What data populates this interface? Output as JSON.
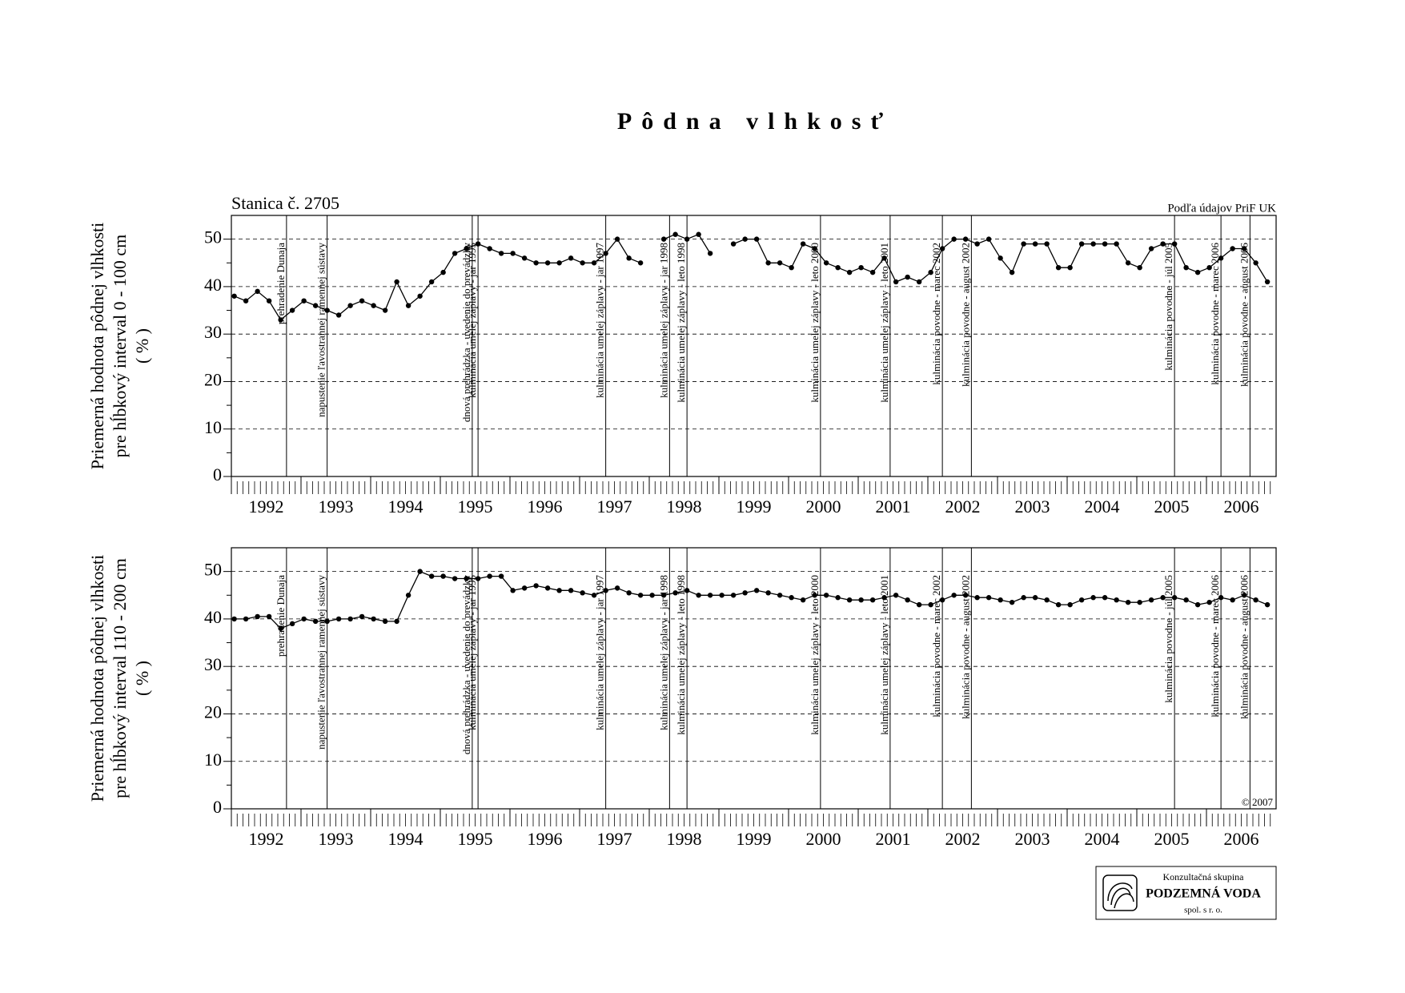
{
  "title": "Pôdna vlhkosť",
  "station": "Stanica č. 2705",
  "source": "Podľa údajov PriF UK",
  "copyright": "© 2007",
  "logo": {
    "line1": "Konzultačná skupina",
    "line2": "PODZEMNÁ VODA",
    "line3": "spol. s r. o."
  },
  "events": [
    {
      "date": "1992-10",
      "label": "prehradenie Dunaja"
    },
    {
      "date": "1993-05",
      "label": "napustenie ľavostrannej ramennej sústavy"
    },
    {
      "date": "1995-06",
      "label": "dnová prehrádzka - uvedenie do prevádzky"
    },
    {
      "date": "1995-07",
      "label": "kulminácia umelej záplavy - jar 1995"
    },
    {
      "date": "1997-05",
      "label": "kulminácia umelej záplavy - jar 1997"
    },
    {
      "date": "1998-04",
      "label": "kulminácia umelej záplavy - jar 1998"
    },
    {
      "date": "1998-07",
      "label": "kulminácia umelej záplavy - leto 1998"
    },
    {
      "date": "2000-06",
      "label": "kulminácia umelej záplavy - leto 2000"
    },
    {
      "date": "2001-06",
      "label": "kulminácia umelej záplavy - leto 2001"
    },
    {
      "date": "2002-03",
      "label": "kulminácia povodne - marec 2002"
    },
    {
      "date": "2002-08",
      "label": "kulminácia povodne - august 2002"
    },
    {
      "date": "2005-07",
      "label": "kulminácia povodne - júl 2005"
    },
    {
      "date": "2006-03",
      "label": "kulminácia povodne - marec 2006"
    },
    {
      "date": "2006-08",
      "label": "kulminácia povodne - august 2006"
    }
  ],
  "chart_data": [
    {
      "type": "line",
      "y_label": [
        "Priemerná hodnota pôdnej vlhkosti",
        "pre hĺbkový interval 0 - 100 cm",
        "( % )"
      ],
      "ylim": [
        0,
        55
      ],
      "yticks": [
        0,
        10,
        20,
        30,
        40,
        50
      ],
      "grid": true,
      "xlim": [
        "1992-01",
        "2006-12"
      ],
      "xticks": [
        1992,
        1993,
        1994,
        1995,
        1996,
        1997,
        1998,
        1999,
        2000,
        2001,
        2002,
        2003,
        2004,
        2005,
        2006
      ],
      "x": [
        "1992-01",
        "1992-03",
        "1992-05",
        "1992-07",
        "1992-09",
        "1992-11",
        "1993-01",
        "1993-03",
        "1993-05",
        "1993-07",
        "1993-09",
        "1993-11",
        "1994-01",
        "1994-03",
        "1994-05",
        "1994-07",
        "1994-09",
        "1994-11",
        "1995-01",
        "1995-03",
        "1995-05",
        "1995-07",
        "1995-09",
        "1995-11",
        "1996-01",
        "1996-03",
        "1996-05",
        "1996-07",
        "1996-09",
        "1996-11",
        "1997-01",
        "1997-03",
        "1997-05",
        "1997-07",
        "1997-09",
        "1997-11",
        "1998-01",
        "1998-03",
        "1998-05",
        "1998-07",
        "1998-09",
        "1998-11",
        "1999-01",
        "1999-03",
        "1999-05",
        "1999-07",
        "1999-09",
        "1999-11",
        "2000-01",
        "2000-03",
        "2000-05",
        "2000-07",
        "2000-09",
        "2000-11",
        "2001-01",
        "2001-03",
        "2001-05",
        "2001-07",
        "2001-09",
        "2001-11",
        "2002-01",
        "2002-03",
        "2002-05",
        "2002-07",
        "2002-09",
        "2002-11",
        "2003-01",
        "2003-03",
        "2003-05",
        "2003-07",
        "2003-09",
        "2003-11",
        "2004-01",
        "2004-03",
        "2004-05",
        "2004-07",
        "2004-09",
        "2004-11",
        "2005-01",
        "2005-03",
        "2005-05",
        "2005-07",
        "2005-09",
        "2005-11",
        "2006-01",
        "2006-03",
        "2006-05",
        "2006-07",
        "2006-09",
        "2006-11"
      ],
      "series": [
        {
          "name": "0 - 100 cm",
          "color": "#000000",
          "values": [
            38,
            37,
            39,
            37,
            33,
            35,
            37,
            36,
            35,
            34,
            36,
            37,
            36,
            35,
            41,
            36,
            38,
            41,
            43,
            47,
            48,
            49,
            48,
            47,
            47,
            46,
            45,
            45,
            45,
            46,
            45,
            45,
            47,
            50,
            46,
            45,
            null,
            50,
            51,
            50,
            51,
            47,
            null,
            49,
            50,
            50,
            45,
            45,
            44,
            49,
            48,
            45,
            44,
            43,
            44,
            43,
            46,
            41,
            42,
            41,
            43,
            48,
            50,
            50,
            49,
            50,
            46,
            43,
            49,
            49,
            49,
            44,
            44,
            49,
            49,
            49,
            49,
            45,
            44,
            48,
            49,
            49,
            44,
            43,
            44,
            46,
            48,
            48,
            45,
            41
          ]
        }
      ]
    },
    {
      "type": "line",
      "y_label": [
        "Priemerná hodnota pôdnej vlhkosti",
        "pre hĺbkový interval 110 - 200 cm",
        "( % )"
      ],
      "ylim": [
        0,
        55
      ],
      "yticks": [
        0,
        10,
        20,
        30,
        40,
        50
      ],
      "grid": true,
      "xlim": [
        "1992-01",
        "2006-12"
      ],
      "xticks": [
        1992,
        1993,
        1994,
        1995,
        1996,
        1997,
        1998,
        1999,
        2000,
        2001,
        2002,
        2003,
        2004,
        2005,
        2006
      ],
      "x": [
        "1992-01",
        "1992-03",
        "1992-05",
        "1992-07",
        "1992-09",
        "1992-11",
        "1993-01",
        "1993-03",
        "1993-05",
        "1993-07",
        "1993-09",
        "1993-11",
        "1994-01",
        "1994-03",
        "1994-05",
        "1994-07",
        "1994-09",
        "1994-11",
        "1995-01",
        "1995-03",
        "1995-05",
        "1995-07",
        "1995-09",
        "1995-11",
        "1996-01",
        "1996-03",
        "1996-05",
        "1996-07",
        "1996-09",
        "1996-11",
        "1997-01",
        "1997-03",
        "1997-05",
        "1997-07",
        "1997-09",
        "1997-11",
        "1998-01",
        "1998-03",
        "1998-05",
        "1998-07",
        "1998-09",
        "1998-11",
        "1999-01",
        "1999-03",
        "1999-05",
        "1999-07",
        "1999-09",
        "1999-11",
        "2000-01",
        "2000-03",
        "2000-05",
        "2000-07",
        "2000-09",
        "2000-11",
        "2001-01",
        "2001-03",
        "2001-05",
        "2001-07",
        "2001-09",
        "2001-11",
        "2002-01",
        "2002-03",
        "2002-05",
        "2002-07",
        "2002-09",
        "2002-11",
        "2003-01",
        "2003-03",
        "2003-05",
        "2003-07",
        "2003-09",
        "2003-11",
        "2004-01",
        "2004-03",
        "2004-05",
        "2004-07",
        "2004-09",
        "2004-11",
        "2005-01",
        "2005-03",
        "2005-05",
        "2005-07",
        "2005-09",
        "2005-11",
        "2006-01",
        "2006-03",
        "2006-05",
        "2006-07",
        "2006-09",
        "2006-11"
      ],
      "series": [
        {
          "name": "110 - 200 cm",
          "color": "#000000",
          "values": [
            40,
            40,
            40.5,
            40.5,
            38,
            39,
            40,
            39.5,
            39.5,
            40,
            40,
            40.5,
            40,
            39.5,
            39.5,
            45,
            50,
            49,
            49,
            48.5,
            48.5,
            48.5,
            49,
            49,
            46,
            46.5,
            47,
            46.5,
            46,
            46,
            45.5,
            45,
            46,
            46.5,
            45.5,
            45,
            45,
            45,
            45.5,
            46,
            45,
            45,
            45,
            45,
            45.5,
            46,
            45.5,
            45,
            44.5,
            44,
            45,
            45,
            44.5,
            44,
            44,
            44,
            44.5,
            45,
            44,
            43,
            43,
            44,
            45,
            45,
            44.5,
            44.5,
            44,
            43.5,
            44.5,
            44.5,
            44,
            43,
            43,
            44,
            44.5,
            44.5,
            44,
            43.5,
            43.5,
            44,
            44.5,
            44.5,
            44,
            43,
            43.5,
            44.5,
            44,
            45,
            44,
            43
          ]
        }
      ]
    }
  ]
}
